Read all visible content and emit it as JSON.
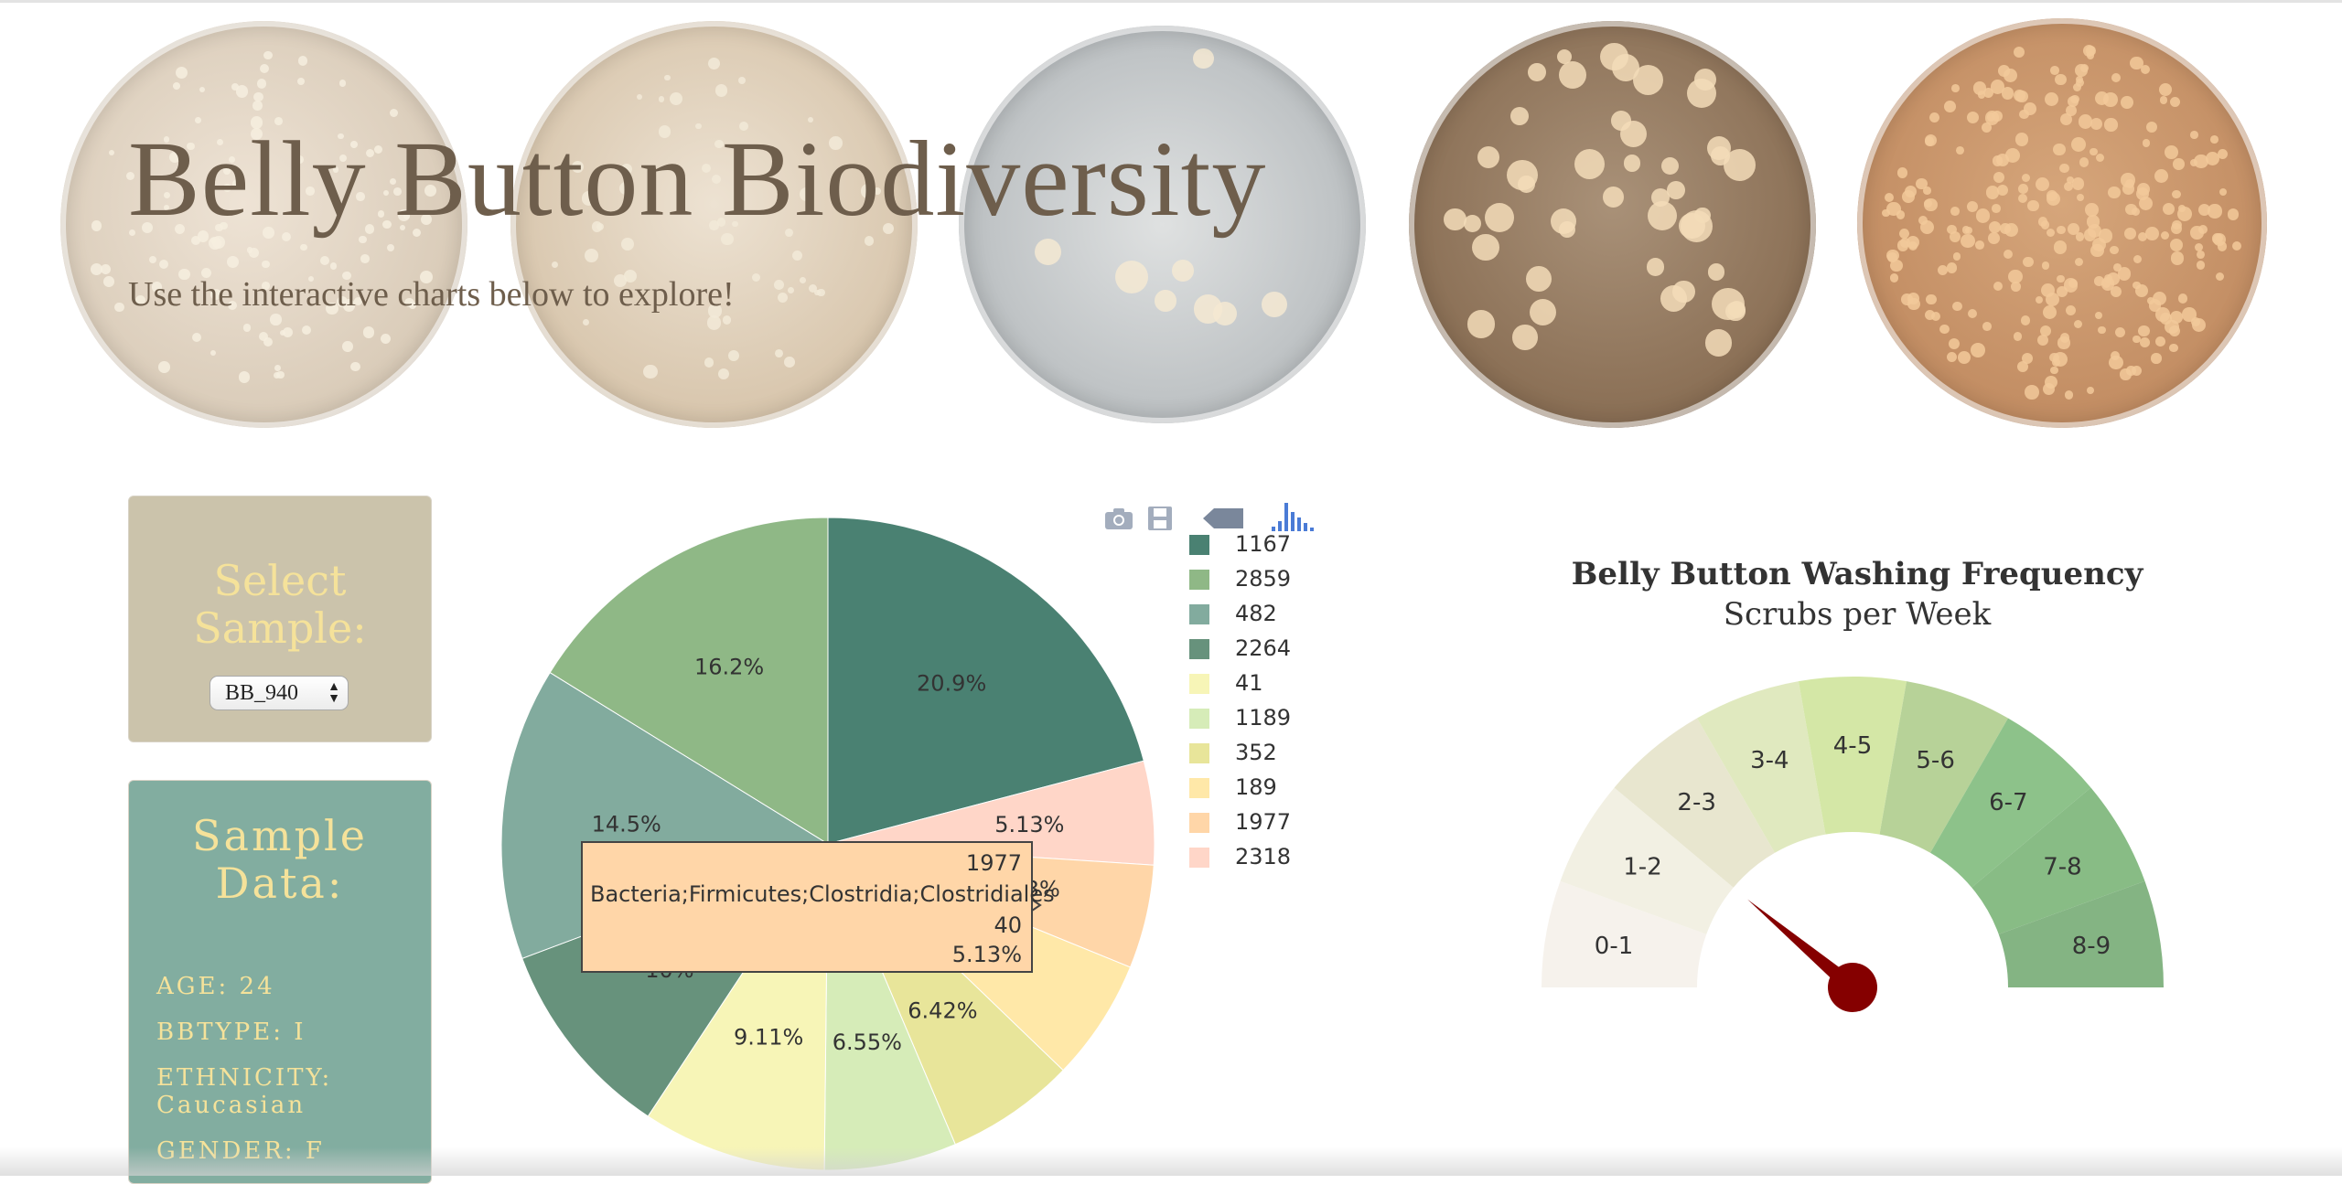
{
  "header": {
    "title": "Belly Button Biodiversity",
    "subtitle": "Use the interactive charts below to explore!"
  },
  "select_panel": {
    "heading_line1": "Select",
    "heading_line2": "Sample:",
    "selected_value": "BB_940"
  },
  "sample_panel": {
    "heading_line1": "Sample",
    "heading_line2": "Data:",
    "items": [
      {
        "label": "AGE: 24"
      },
      {
        "label": "BBTYPE: I"
      },
      {
        "label": "ETHNICITY:",
        "label2": "Caucasian"
      },
      {
        "label": "GENDER: F"
      }
    ]
  },
  "modebar": {
    "icons": [
      "camera-icon",
      "save-icon",
      "tag-icon",
      "bar-chart-icon"
    ],
    "accent": "#4a7bd6"
  },
  "chart_data": [
    {
      "type": "pie",
      "slices": [
        {
          "label": "1167",
          "percent": 20.9,
          "text": "20.9%",
          "color": "#4a8172"
        },
        {
          "label": "2318",
          "percent": 5.13,
          "text": "5.13%",
          "color": "#ffd6c8"
        },
        {
          "label": "1977",
          "percent": 5.13,
          "text": "5.13%",
          "color": "#ffd6a8"
        },
        {
          "label": "189",
          "percent": 6.03,
          "text": "6.03%",
          "color": "#ffe8a8"
        },
        {
          "label": "352",
          "percent": 6.42,
          "text": "6.42%",
          "color": "#e8e59a"
        },
        {
          "label": "1189",
          "percent": 6.55,
          "text": "6.55%",
          "color": "#d6ecb8"
        },
        {
          "label": "41",
          "percent": 9.11,
          "text": "9.11%",
          "color": "#f7f5b7"
        },
        {
          "label": "2264",
          "percent": 10.0,
          "text": "10%",
          "color": "#67927c"
        },
        {
          "label": "482",
          "percent": 14.5,
          "text": "14.5%",
          "color": "#82ab9e"
        },
        {
          "label": "2859",
          "percent": 16.2,
          "text": "16.2%",
          "color": "#8fb886"
        }
      ],
      "legend": [
        {
          "label": "1167",
          "color": "#4a8172"
        },
        {
          "label": "2859",
          "color": "#8fb886"
        },
        {
          "label": "482",
          "color": "#82ab9e"
        },
        {
          "label": "2264",
          "color": "#67927c"
        },
        {
          "label": "41",
          "color": "#f7f5b7"
        },
        {
          "label": "1189",
          "color": "#d6ecb8"
        },
        {
          "label": "352",
          "color": "#e8e59a"
        },
        {
          "label": "189",
          "color": "#ffe8a8"
        },
        {
          "label": "1977",
          "color": "#ffd6a8"
        },
        {
          "label": "2318",
          "color": "#ffd6c8"
        }
      ],
      "hover": {
        "line1": "1977",
        "line2": "Bacteria;Firmicutes;Clostridia;Clostridiales",
        "line3": "40",
        "line4": "5.13%"
      }
    },
    {
      "type": "gauge",
      "title": "Belly Button Washing Frequency",
      "subtitle": "Scrubs per Week",
      "range": [
        0,
        9
      ],
      "value": 2,
      "needle_color": "#850000",
      "bands": [
        {
          "label": "0-1",
          "color": "#f6f2ec"
        },
        {
          "label": "1-2",
          "color": "#f2f0e3"
        },
        {
          "label": "2-3",
          "color": "#e8e6cf"
        },
        {
          "label": "3-4",
          "color": "#e0e9bf"
        },
        {
          "label": "4-5",
          "color": "#d4e7a6"
        },
        {
          "label": "5-6",
          "color": "#b7d298"
        },
        {
          "label": "6-7",
          "color": "#8dc28a"
        },
        {
          "label": "7-8",
          "color": "#88bc85"
        },
        {
          "label": "8-9",
          "color": "#84b483"
        }
      ]
    }
  ]
}
